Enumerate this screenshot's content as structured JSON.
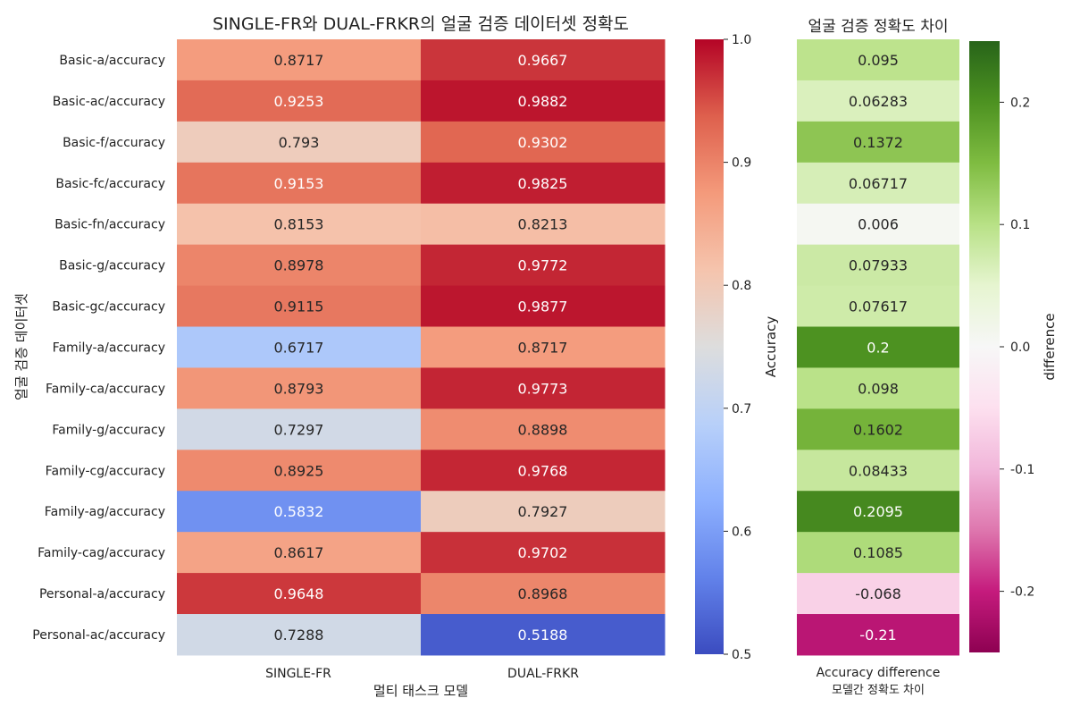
{
  "chart_data": [
    {
      "type": "heatmap",
      "title": "SINGLE-FR와 DUAL-FRKR의 얼굴 검증 데이터셋 정확도",
      "xlabel": "멀티 태스크 모델",
      "ylabel": "얼굴 검증 데이터셋",
      "columns": [
        "SINGLE-FR",
        "DUAL-FRKR"
      ],
      "rows": [
        "Basic-a/accuracy",
        "Basic-ac/accuracy",
        "Basic-f/accuracy",
        "Basic-fc/accuracy",
        "Basic-fn/accuracy",
        "Basic-g/accuracy",
        "Basic-gc/accuracy",
        "Family-a/accuracy",
        "Family-ca/accuracy",
        "Family-g/accuracy",
        "Family-cg/accuracy",
        "Family-ag/accuracy",
        "Family-cag/accuracy",
        "Personal-a/accuracy",
        "Personal-ac/accuracy"
      ],
      "values": [
        [
          "0.8717",
          "0.9667"
        ],
        [
          "0.9253",
          "0.9882"
        ],
        [
          "0.793",
          "0.9302"
        ],
        [
          "0.9153",
          "0.9825"
        ],
        [
          "0.8153",
          "0.8213"
        ],
        [
          "0.8978",
          "0.9772"
        ],
        [
          "0.9115",
          "0.9877"
        ],
        [
          "0.6717",
          "0.8717"
        ],
        [
          "0.8793",
          "0.9773"
        ],
        [
          "0.7297",
          "0.8898"
        ],
        [
          "0.8925",
          "0.9768"
        ],
        [
          "0.5832",
          "0.7927"
        ],
        [
          "0.8617",
          "0.9702"
        ],
        [
          "0.9648",
          "0.8968"
        ],
        [
          "0.7288",
          "0.5188"
        ]
      ],
      "colormap": "coolwarm",
      "colorbar": {
        "label": "Accuracy",
        "range": [
          0.5,
          1.0
        ],
        "ticks": [
          "0.5",
          "0.6",
          "0.7",
          "0.8",
          "0.9",
          "1.0"
        ]
      }
    },
    {
      "type": "heatmap",
      "title": "얼굴 검증 정확도 차이",
      "xlabel": "Accuracy difference",
      "xlabel_sub": "모델간 정확도 차이",
      "columns": [
        ""
      ],
      "values": [
        [
          "0.095"
        ],
        [
          "0.06283"
        ],
        [
          "0.1372"
        ],
        [
          "0.06717"
        ],
        [
          "0.006"
        ],
        [
          "0.07933"
        ],
        [
          "0.07617"
        ],
        [
          "0.2"
        ],
        [
          "0.098"
        ],
        [
          "0.1602"
        ],
        [
          "0.08433"
        ],
        [
          "0.2095"
        ],
        [
          "0.1085"
        ],
        [
          "-0.068"
        ],
        [
          "-0.21"
        ]
      ],
      "colormap": "PiYG",
      "colorbar": {
        "label": "difference",
        "range": [
          -0.25,
          0.25
        ],
        "ticks": [
          "0.2",
          "0.1",
          "0.0",
          "-0.1",
          "-0.2"
        ]
      }
    }
  ]
}
